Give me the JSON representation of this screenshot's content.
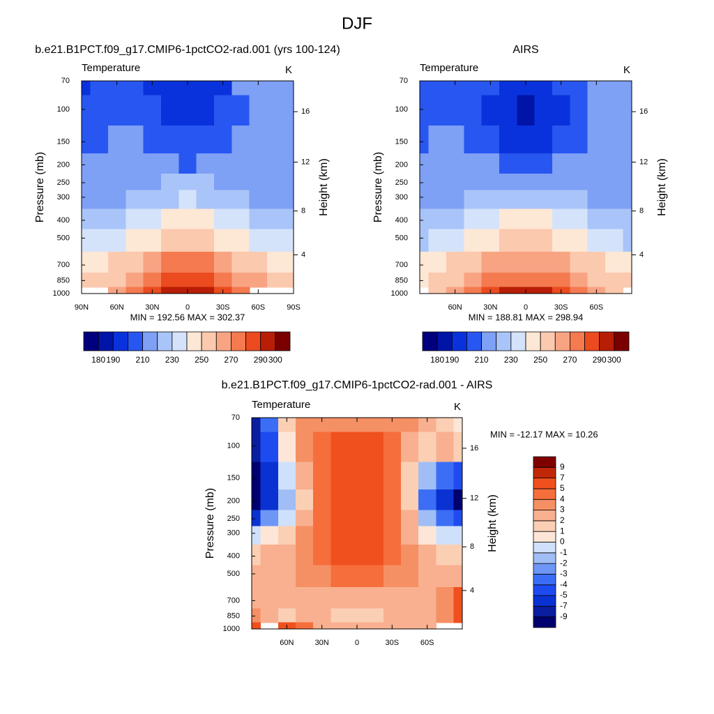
{
  "title": "DJF",
  "chart_data": [
    {
      "type": "contour",
      "title": "b.e21.B1PCT.f09_g17.CMIP6-1pctCO2-rad.001 (yrs 100-124)",
      "subtitle": "Temperature",
      "units": "K",
      "ylabel": "Pressure (mb)",
      "y2label": "Height (km)",
      "annotation": "MIN = 192.56  MAX = 302.37",
      "x": [
        90,
        75,
        60,
        45,
        30,
        15,
        0,
        -15,
        -30,
        -45,
        -60,
        -75,
        -90
      ],
      "y": [
        70,
        100,
        150,
        200,
        250,
        300,
        400,
        500,
        700,
        850,
        1000
      ],
      "z": [
        [
          197,
          203,
          205,
          205,
          199,
          196,
          195,
          196,
          199,
          210,
          215,
          216,
          216
        ],
        [
          203,
          205,
          207,
          207,
          200,
          196,
          195,
          196,
          200,
          208,
          215,
          216,
          216
        ],
        [
          207,
          208,
          210,
          210,
          205,
          201,
          200,
          201,
          205,
          212,
          216,
          215,
          214
        ],
        [
          210,
          211,
          213,
          214,
          212,
          210,
          209,
          211,
          213,
          216,
          217,
          214,
          212
        ],
        [
          213,
          214,
          215,
          217,
          219,
          221,
          221,
          221,
          219,
          218,
          217,
          213,
          212
        ],
        [
          216,
          217,
          218,
          220,
          225,
          229,
          230,
          229,
          225,
          221,
          218,
          216,
          216
        ],
        [
          223,
          224,
          226,
          230,
          238,
          243,
          244,
          243,
          238,
          231,
          226,
          224,
          223
        ],
        [
          230,
          232,
          235,
          240,
          248,
          254,
          255,
          254,
          248,
          241,
          234,
          231,
          230
        ],
        [
          244,
          246,
          250,
          258,
          266,
          271,
          272,
          271,
          265,
          258,
          252,
          248,
          246
        ],
        [
          250,
          252,
          258,
          268,
          278,
          283,
          284,
          283,
          278,
          268,
          260,
          255,
          254
        ],
        [
          null,
          null,
          262,
          274,
          285,
          292,
          296,
          292,
          285,
          274,
          null,
          null,
          null
        ]
      ],
      "xlim": [
        90,
        -90
      ],
      "xticks": [
        {
          "value": 90,
          "label": "90N"
        },
        {
          "value": 60,
          "label": "60N"
        },
        {
          "value": 30,
          "label": "30N"
        },
        0,
        {
          "value": -30,
          "label": "30S"
        },
        {
          "value": -60,
          "label": "60S"
        },
        {
          "value": -90,
          "label": "90S"
        }
      ],
      "ylim": [
        1000,
        70
      ],
      "ylog": true,
      "yticks": [
        70,
        100,
        150,
        200,
        250,
        300,
        400,
        500,
        700,
        850,
        1000
      ],
      "y2ticks": [
        4,
        8,
        12,
        16
      ],
      "colorbar": {
        "orientation": "horizontal",
        "levels": [
          180,
          190,
          200,
          210,
          220,
          230,
          240,
          250,
          260,
          270,
          280,
          290,
          300
        ],
        "colors": [
          "#00007f",
          "#0014a8",
          "#0a32dc",
          "#2856f0",
          "#7ea0f5",
          "#a9c4f8",
          "#d4e3fa",
          "#fde7d5",
          "#fbc9ae",
          "#f8a483",
          "#f57a50",
          "#eb4b1e",
          "#b81e05",
          "#7a0000"
        ],
        "ticks": [
          180,
          190,
          210,
          230,
          250,
          270,
          290,
          300
        ]
      }
    },
    {
      "type": "contour",
      "title": "AIRS",
      "subtitle": "Temperature",
      "units": "K",
      "ylabel": "Pressure (mb)",
      "y2label": "Height (km)",
      "annotation": "MIN = 188.81  MAX = 298.94",
      "x": [
        90,
        75,
        60,
        45,
        30,
        15,
        0,
        -15,
        -30,
        -45,
        -60,
        -75,
        -90
      ],
      "y": [
        70,
        100,
        150,
        200,
        250,
        300,
        400,
        500,
        700,
        850,
        1000
      ],
      "z": [
        [
          205,
          207,
          207,
          205,
          200,
          197,
          196,
          197,
          200,
          206,
          212,
          214,
          216
        ],
        [
          207,
          208,
          208,
          206,
          198,
          193,
          189,
          193,
          198,
          205,
          210,
          212,
          214
        ],
        [
          209,
          210,
          211,
          209,
          203,
          199,
          198,
          199,
          203,
          208,
          212,
          213,
          213
        ],
        [
          211,
          212,
          213,
          213,
          210,
          208,
          207,
          208,
          210,
          212,
          214,
          214,
          214
        ],
        [
          213,
          214,
          215,
          216,
          217,
          218,
          218,
          218,
          217,
          216,
          215,
          214,
          214
        ],
        [
          217,
          218,
          219,
          221,
          224,
          227,
          228,
          227,
          224,
          221,
          219,
          218,
          218
        ],
        [
          223,
          225,
          228,
          232,
          237,
          241,
          242,
          241,
          237,
          232,
          227,
          225,
          224
        ],
        [
          229,
          232,
          236,
          241,
          247,
          251,
          252,
          251,
          247,
          241,
          235,
          231,
          229
        ],
        [
          241,
          245,
          251,
          258,
          264,
          268,
          269,
          268,
          264,
          258,
          251,
          245,
          242
        ],
        [
          249,
          252,
          259,
          266,
          273,
          278,
          279,
          278,
          273,
          266,
          259,
          253,
          250
        ],
        [
          null,
          256,
          264,
          273,
          283,
          292,
          297,
          292,
          283,
          273,
          264,
          256,
          null
        ]
      ],
      "xlim": [
        90,
        -90
      ],
      "xticks": [
        {
          "value": 60,
          "label": "60N"
        },
        {
          "value": 30,
          "label": "30N"
        },
        0,
        {
          "value": -30,
          "label": "30S"
        },
        {
          "value": -60,
          "label": "60S"
        }
      ],
      "ylim": [
        1000,
        70
      ],
      "ylog": true,
      "yticks": [
        70,
        100,
        150,
        200,
        250,
        300,
        400,
        500,
        700,
        850,
        1000
      ],
      "y2ticks": [
        4,
        8,
        12,
        16
      ],
      "colorbar": {
        "orientation": "horizontal",
        "levels": [
          180,
          190,
          200,
          210,
          220,
          230,
          240,
          250,
          260,
          270,
          280,
          290,
          300
        ],
        "colors": [
          "#00007f",
          "#0014a8",
          "#0a32dc",
          "#2856f0",
          "#7ea0f5",
          "#a9c4f8",
          "#d4e3fa",
          "#fde7d5",
          "#fbc9ae",
          "#f8a483",
          "#f57a50",
          "#eb4b1e",
          "#b81e05",
          "#7a0000"
        ],
        "ticks": [
          180,
          190,
          210,
          230,
          250,
          270,
          290,
          300
        ]
      }
    },
    {
      "type": "contour",
      "title": "b.e21.B1PCT.f09_g17.CMIP6-1pctCO2-rad.001 - AIRS",
      "subtitle": "Temperature",
      "units": "K",
      "ylabel": "Pressure (mb)",
      "y2label": "Height (km)",
      "annotation": "MIN = -12.17  MAX =  10.26",
      "x": [
        90,
        75,
        60,
        45,
        30,
        15,
        0,
        -15,
        -30,
        -45,
        -60,
        -75,
        -90
      ],
      "y": [
        70,
        100,
        150,
        200,
        250,
        300,
        400,
        500,
        700,
        850,
        1000
      ],
      "z": [
        [
          -8,
          -4,
          1,
          3,
          3,
          3,
          3,
          3,
          3,
          3,
          2,
          1,
          0
        ],
        [
          -9,
          -5,
          0,
          3,
          4,
          5,
          5,
          5,
          4,
          2,
          1,
          2,
          1
        ],
        [
          -10,
          -6,
          -1,
          2,
          4,
          6,
          6,
          6,
          4,
          1,
          -2,
          -4,
          -5
        ],
        [
          -10,
          -6,
          -2,
          1,
          4,
          6,
          6,
          6,
          4,
          1,
          -4,
          -7,
          -10
        ],
        [
          -7,
          -3,
          -1,
          2,
          4,
          6,
          6,
          6,
          4,
          2,
          -2,
          -4,
          -5
        ],
        [
          -1,
          0,
          1,
          3,
          4,
          5,
          6,
          5,
          4,
          2,
          0,
          -1,
          -1
        ],
        [
          1,
          2,
          2,
          3,
          4,
          5,
          5,
          5,
          4,
          3,
          2,
          1,
          1
        ],
        [
          2,
          2,
          2,
          3,
          3,
          4,
          4,
          4,
          3,
          3,
          2,
          2,
          2
        ],
        [
          2,
          2,
          2,
          2,
          2,
          2,
          2,
          2,
          2,
          2,
          2,
          3,
          6
        ],
        [
          3,
          2,
          1,
          2,
          2,
          1,
          1,
          1,
          2,
          2,
          2,
          3,
          6
        ],
        [
          5,
          null,
          5,
          4,
          2,
          2,
          2,
          2,
          2,
          2,
          2,
          null,
          null
        ]
      ],
      "xlim": [
        90,
        -90
      ],
      "xticks": [
        {
          "value": 60,
          "label": "60N"
        },
        {
          "value": 30,
          "label": "30N"
        },
        0,
        {
          "value": -30,
          "label": "30S"
        },
        {
          "value": -60,
          "label": "60S"
        }
      ],
      "ylim": [
        1000,
        70
      ],
      "ylog": true,
      "yticks": [
        70,
        100,
        150,
        200,
        250,
        300,
        400,
        500,
        700,
        850,
        1000
      ],
      "y2ticks": [
        4,
        8,
        12,
        16
      ],
      "colorbar": {
        "orientation": "vertical",
        "levels": [
          -9,
          -7,
          -5,
          -4,
          -3,
          -2,
          -1,
          0,
          1,
          2,
          3,
          4,
          5,
          7,
          9
        ],
        "colors": [
          "#00006e",
          "#0a1ea0",
          "#0a32d2",
          "#1e4bf0",
          "#3c6ef5",
          "#6e96f5",
          "#a0bef5",
          "#cfe0fa",
          "#fde6d7",
          "#fbcfb4",
          "#f8b090",
          "#f59064",
          "#f56e3c",
          "#f0501e",
          "#c02808",
          "#800000"
        ],
        "ticks": [
          -9,
          -7,
          -5,
          -4,
          -3,
          -2,
          -1,
          0,
          1,
          2,
          3,
          4,
          5,
          7,
          9
        ]
      }
    }
  ]
}
